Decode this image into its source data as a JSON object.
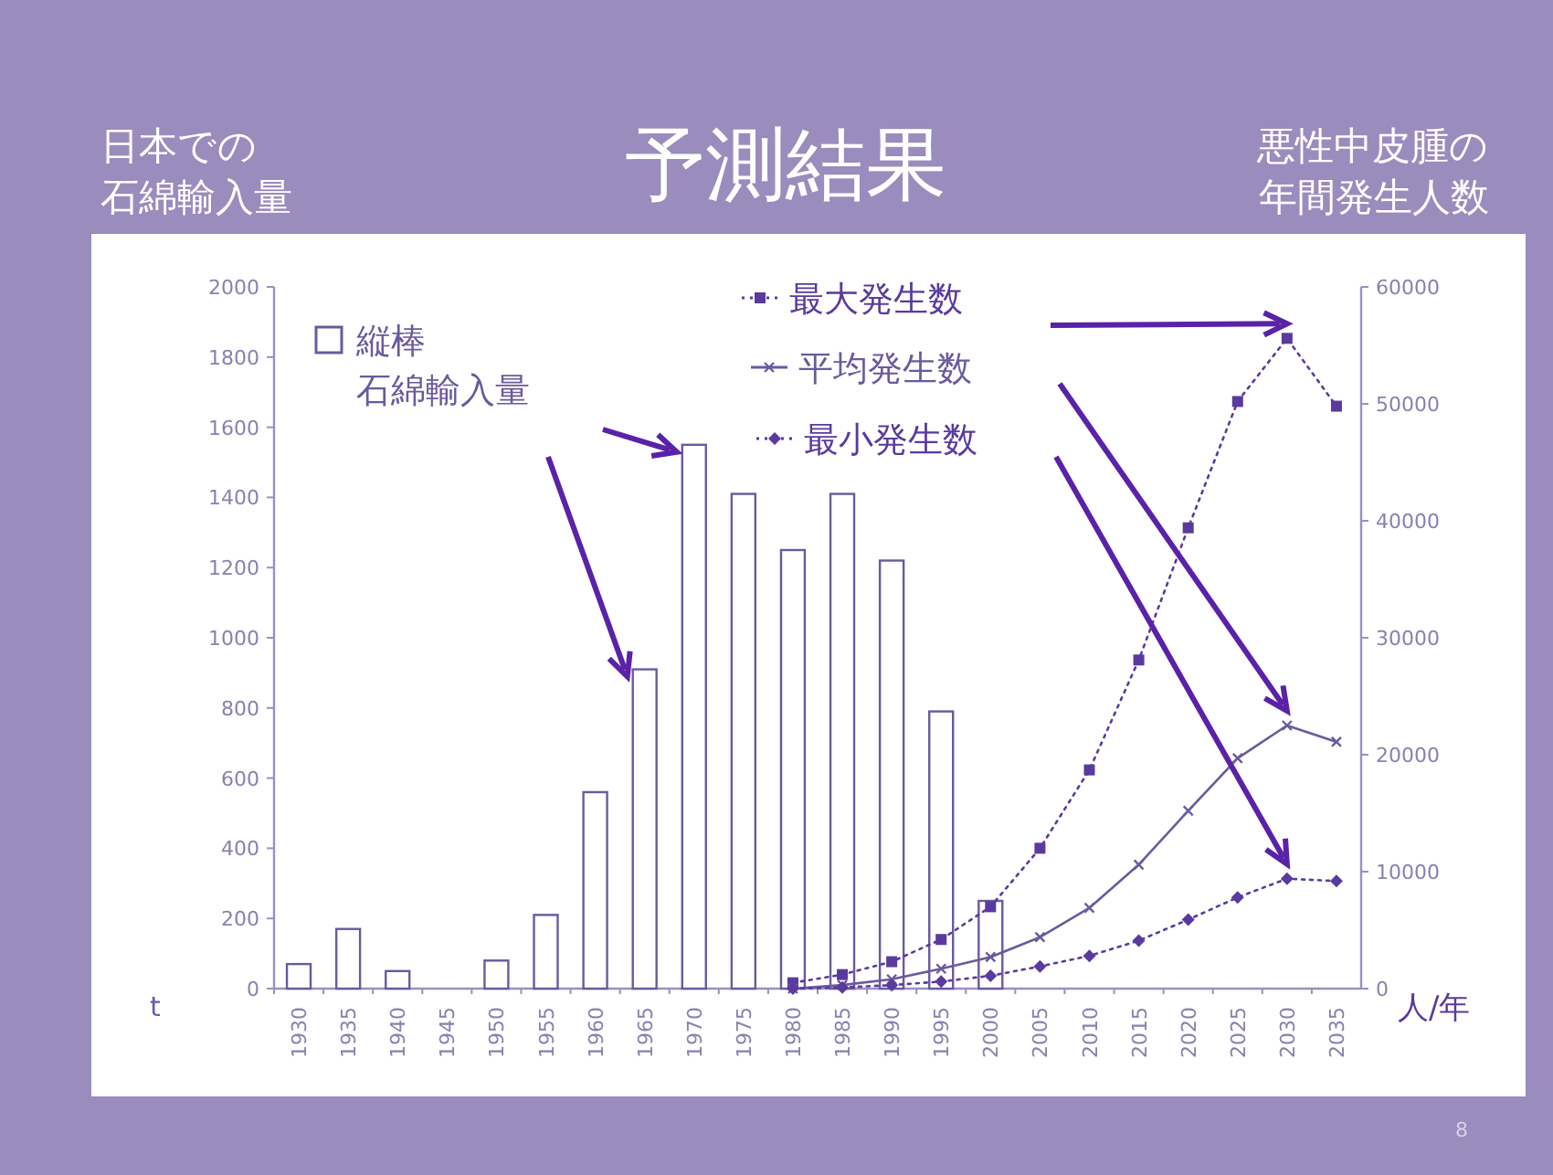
{
  "chart_data": {
    "type": "bar",
    "title": "予測結果",
    "ylabel": "日本での石綿輸入量",
    "y2label": "悪性中皮腫の年間発生人数",
    "categories": [
      "1930",
      "1935",
      "1940",
      "1945",
      "1950",
      "1955",
      "1960",
      "1965",
      "1970",
      "1975",
      "1980",
      "1985",
      "1990",
      "1995",
      "2000",
      "2005",
      "2010",
      "2015",
      "2020",
      "2025",
      "2030",
      "2035"
    ],
    "series": [
      {
        "name": "縦棒石綿輸入量",
        "color": "#6a5a9e",
        "values": [
          70,
          170,
          50,
          null,
          80,
          210,
          560,
          910,
          1550,
          1410,
          1250,
          1410,
          1220,
          790,
          250,
          null,
          null,
          null,
          null,
          null,
          null,
          null
        ]
      },
      {
        "name": "最大発生数",
        "type": "line",
        "axis": "y2",
        "color": "#5a3a9e",
        "marker": "square",
        "line_style": "dotted",
        "values": [
          null,
          null,
          null,
          null,
          null,
          null,
          null,
          null,
          null,
          null,
          500,
          1200,
          2300,
          4200,
          7000,
          12000,
          18700,
          28100,
          39400,
          50200,
          55600,
          49800
        ]
      },
      {
        "name": "平均発生数",
        "type": "line",
        "axis": "y2",
        "color": "#6a5a9e",
        "marker": "cross",
        "line_style": "solid",
        "values": [
          null,
          null,
          null,
          null,
          null,
          null,
          null,
          null,
          null,
          null,
          0,
          300,
          800,
          1700,
          2700,
          4400,
          6900,
          10600,
          15200,
          19700,
          22500,
          21100
        ]
      },
      {
        "name": "最小発生数",
        "type": "line",
        "axis": "y2",
        "color": "#5a3a9e",
        "marker": "diamond",
        "line_style": "dotted",
        "values": [
          null,
          null,
          null,
          null,
          null,
          null,
          null,
          null,
          null,
          null,
          0,
          100,
          300,
          600,
          1100,
          1900,
          2800,
          4100,
          5900,
          7800,
          9400,
          9200
        ]
      }
    ],
    "ylim": [
      0,
      2000
    ],
    "yticks": [
      0,
      200,
      400,
      600,
      800,
      1000,
      1200,
      1400,
      1600,
      1800,
      2000
    ],
    "y2lim": [
      0,
      60000
    ],
    "y2ticks": [
      0,
      10000,
      20000,
      30000,
      40000,
      50000,
      60000
    ],
    "legend": "top",
    "annotations": [
      "t",
      "人/年",
      "8"
    ]
  }
}
